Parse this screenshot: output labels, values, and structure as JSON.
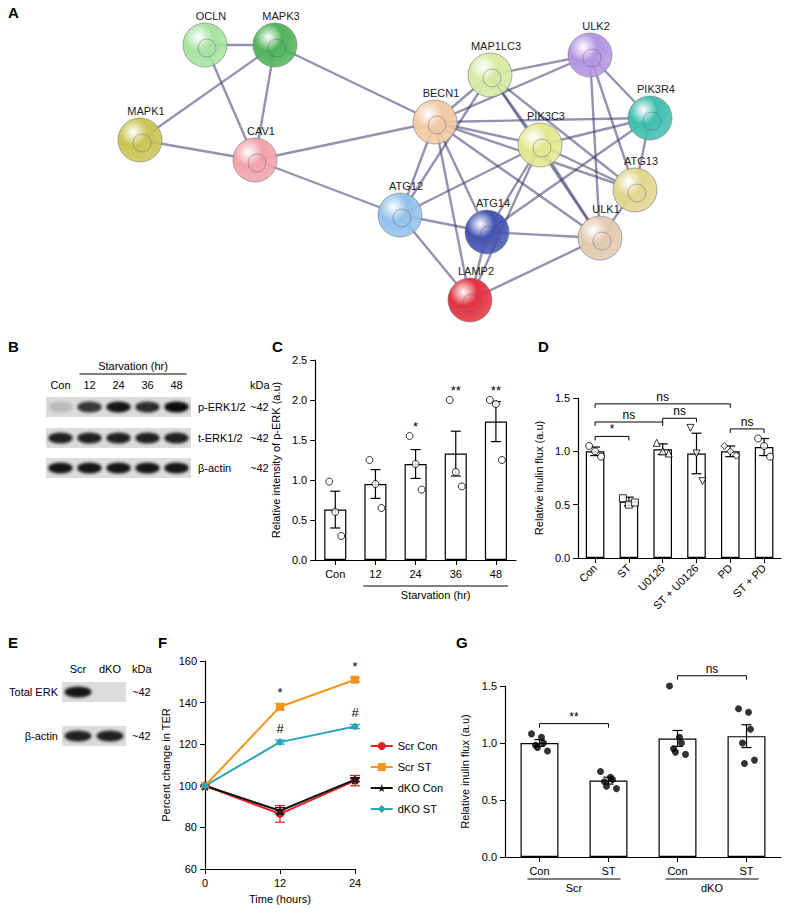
{
  "network": {
    "panel": "A",
    "nodes": [
      {
        "label": "OCLN",
        "color": "#a6e3a1"
      },
      {
        "label": "MAPK3",
        "color": "#4fb45a"
      },
      {
        "label": "MAPK1",
        "color": "#c9c552"
      },
      {
        "label": "CAV1",
        "color": "#f1a3ab"
      },
      {
        "label": "MAP1LC3",
        "color": "#d6eaa2"
      },
      {
        "label": "ULK2",
        "color": "#b395e2"
      },
      {
        "label": "PIK3R4",
        "color": "#3fbfae"
      },
      {
        "label": "BECN1",
        "color": "#f1c9a4"
      },
      {
        "label": "PIK3C3",
        "color": "#e2e88f"
      },
      {
        "label": "ATG13",
        "color": "#e0d58e"
      },
      {
        "label": "ATG12",
        "color": "#93c1ea"
      },
      {
        "label": "ATG14",
        "color": "#4453b3"
      },
      {
        "label": "ULK1",
        "color": "#e2c9b0"
      },
      {
        "label": "LAMP2",
        "color": "#e2323f"
      }
    ],
    "edges": [
      [
        "OCLN",
        "MAPK3"
      ],
      [
        "OCLN",
        "CAV1"
      ],
      [
        "MAPK3",
        "MAPK1"
      ],
      [
        "MAPK3",
        "CAV1"
      ],
      [
        "MAPK3",
        "BECN1"
      ],
      [
        "MAPK1",
        "CAV1"
      ],
      [
        "CAV1",
        "BECN1"
      ],
      [
        "CAV1",
        "ATG12"
      ],
      [
        "BECN1",
        "MAP1LC3"
      ],
      [
        "BECN1",
        "ULK2"
      ],
      [
        "BECN1",
        "PIK3R4"
      ],
      [
        "BECN1",
        "PIK3C3"
      ],
      [
        "BECN1",
        "ATG13"
      ],
      [
        "BECN1",
        "ATG12"
      ],
      [
        "BECN1",
        "ATG14"
      ],
      [
        "BECN1",
        "ULK1"
      ],
      [
        "BECN1",
        "LAMP2"
      ],
      [
        "MAP1LC3",
        "ULK2"
      ],
      [
        "MAP1LC3",
        "PIK3C3"
      ],
      [
        "MAP1LC3",
        "ATG12"
      ],
      [
        "MAP1LC3",
        "ULK1"
      ],
      [
        "MAP1LC3",
        "ATG13"
      ],
      [
        "ULK2",
        "PIK3R4"
      ],
      [
        "ULK2",
        "ATG13"
      ],
      [
        "ULK2",
        "ULK1"
      ],
      [
        "PIK3R4",
        "PIK3C3"
      ],
      [
        "PIK3R4",
        "ATG14"
      ],
      [
        "PIK3R4",
        "ATG13"
      ],
      [
        "PIK3C3",
        "ATG14"
      ],
      [
        "PIK3C3",
        "ATG12"
      ],
      [
        "PIK3C3",
        "ATG13"
      ],
      [
        "PIK3C3",
        "ULK1"
      ],
      [
        "PIK3C3",
        "LAMP2"
      ],
      [
        "ATG12",
        "ATG14"
      ],
      [
        "ATG12",
        "LAMP2"
      ],
      [
        "ATG14",
        "ULK1"
      ],
      [
        "ATG14",
        "LAMP2"
      ],
      [
        "ULK1",
        "ATG13"
      ],
      [
        "ULK1",
        "LAMP2"
      ]
    ]
  },
  "blots": [
    {
      "panel": "B",
      "lanes": [
        "Con",
        "12",
        "24",
        "36",
        "48"
      ],
      "lane_group": {
        "label": "Starvation (hr)",
        "from": 1,
        "to": 4
      },
      "unit": "kDa",
      "rows": [
        {
          "label": "p-ERK1/2",
          "size": "~42",
          "band_intensity": [
            0.15,
            0.75,
            0.9,
            0.8,
            0.95
          ]
        },
        {
          "label": "t-ERK1/2",
          "size": "~42",
          "band_intensity": [
            0.85,
            0.85,
            0.85,
            0.85,
            0.85
          ]
        },
        {
          "label": "β-actin",
          "size": "~42",
          "band_intensity": [
            0.9,
            0.9,
            0.9,
            0.9,
            0.9
          ]
        }
      ]
    },
    {
      "panel": "E",
      "lanes": [
        "Scr",
        "dKO"
      ],
      "unit": "kDa",
      "rows": [
        {
          "label": "Total ERK",
          "size": "~42",
          "band_intensity": [
            0.9,
            0
          ]
        },
        {
          "label": "β-actin",
          "size": "~42",
          "band_intensity": [
            0.85,
            0.85
          ]
        }
      ]
    }
  ],
  "chart_data": [
    {
      "panel": "C",
      "type": "bar",
      "categories": [
        "Con",
        "12",
        "24",
        "36",
        "48"
      ],
      "values": [
        0.63,
        0.95,
        1.2,
        1.33,
        1.73
      ],
      "errors": [
        0.23,
        0.18,
        0.18,
        0.28,
        0.25
      ],
      "points": [
        [
          0.98,
          0.6,
          0.3
        ],
        [
          1.25,
          0.95,
          0.65
        ],
        [
          1.55,
          1.2,
          0.88
        ],
        [
          2.0,
          1.1,
          0.92
        ],
        [
          2.0,
          1.95,
          1.25
        ]
      ],
      "marker": "open circle",
      "color": "#ffffff",
      "ylabel": "Relative intensity of p-ERK (a.u)",
      "ylim": [
        0,
        2.5
      ],
      "yticks": [
        {
          "value": 0,
          "label": "0.0"
        },
        {
          "value": 0.5,
          "label": "0.5"
        },
        {
          "value": 1,
          "label": "1.0"
        },
        {
          "value": 1.5,
          "label": "1.5"
        },
        {
          "value": 2,
          "label": "2.0"
        },
        {
          "value": 2.5,
          "label": "2.5"
        }
      ],
      "groups": [
        {
          "label": "Starvation (hr)",
          "from": 1,
          "to": 4
        }
      ],
      "annotations": [
        {
          "category": "24",
          "label": "*"
        },
        {
          "category": "36",
          "label": "**"
        },
        {
          "category": "48",
          "label": "**"
        }
      ],
      "grid": false
    },
    {
      "panel": "D",
      "type": "bar",
      "categories": [
        "Con",
        "ST",
        "U0126",
        "ST + U0126",
        "PD",
        "ST + PD"
      ],
      "values": [
        1.0,
        0.53,
        1.02,
        0.98,
        1.0,
        1.04
      ],
      "errors": [
        0.04,
        0.04,
        0.05,
        0.19,
        0.05,
        0.08
      ],
      "points": [
        {
          "values": [
            1.05,
            1.0,
            0.95
          ],
          "marker": "open circle"
        },
        {
          "values": [
            0.56,
            0.5,
            0.52
          ],
          "marker": "open square"
        },
        {
          "values": [
            1.08,
            1.0,
            0.98
          ],
          "marker": "open triangle"
        },
        {
          "values": [
            1.22,
            0.98,
            0.72
          ],
          "marker": "open triangle-down"
        },
        {
          "values": [
            1.05,
            1.0,
            0.96
          ],
          "marker": "open diamond"
        },
        {
          "values": [
            1.12,
            1.05,
            0.95
          ],
          "marker": "open circle"
        }
      ],
      "color": "#ffffff",
      "ylabel": "Relative inulin flux (a.u)",
      "ylim": [
        0,
        1.5
      ],
      "yticks": [
        {
          "value": 0,
          "label": "0.0"
        },
        {
          "value": 0.5,
          "label": "0.5"
        },
        {
          "value": 1,
          "label": "1.0"
        },
        {
          "value": 1.5,
          "label": "1.5"
        }
      ],
      "comparisons": [
        {
          "from": 0,
          "to": 1,
          "label": "*"
        },
        {
          "from": 0,
          "to": 2,
          "label": "ns"
        },
        {
          "from": 0,
          "to": 4,
          "label": "ns"
        },
        {
          "from": 2,
          "to": 3,
          "label": "ns"
        },
        {
          "from": 4,
          "to": 5,
          "label": "ns"
        }
      ],
      "grid": false
    },
    {
      "panel": "F",
      "type": "line",
      "x": [
        0,
        12,
        24
      ],
      "series": [
        {
          "name": "Scr Con",
          "color": "#e31e24",
          "marker": "circle",
          "values": [
            100,
            86.5,
            102.5
          ],
          "errors": [
            0,
            4,
            2.5
          ]
        },
        {
          "name": "Scr ST",
          "color": "#f7941d",
          "marker": "square",
          "values": [
            100,
            138,
            151
          ],
          "errors": [
            0,
            1.5,
            1
          ],
          "annotations": [
            {
              "x": 12,
              "label": "*"
            },
            {
              "x": 24,
              "label": "*"
            }
          ]
        },
        {
          "name": "dKO Con",
          "color": "#111111",
          "marker": "star",
          "values": [
            100,
            88,
            103
          ],
          "errors": [
            0,
            1.5,
            1
          ]
        },
        {
          "name": "dKO ST",
          "color": "#2ba6b4",
          "marker": "diamond",
          "values": [
            100,
            121,
            128.5
          ],
          "errors": [
            0,
            1,
            1
          ],
          "annotations": [
            {
              "x": 12,
              "label": "#"
            },
            {
              "x": 24,
              "label": "#"
            }
          ]
        }
      ],
      "xlabel": "Time (hours)",
      "ylabel": "Percent change in TER",
      "xlim": [
        0,
        24
      ],
      "xticks": [
        0,
        12,
        24
      ],
      "ylim": [
        60,
        160
      ],
      "yticks": [
        60,
        80,
        100,
        120,
        140,
        160
      ],
      "legend": "right",
      "grid": false
    },
    {
      "panel": "G",
      "type": "bar",
      "categories": [
        "Con",
        "ST",
        "Con",
        "ST"
      ],
      "values": [
        1.0,
        0.67,
        1.04,
        1.06
      ],
      "errors": [
        0.03,
        0.03,
        0.07,
        0.1
      ],
      "points": [
        [
          1.08,
          1.05,
          1.0,
          0.98,
          0.96,
          0.93
        ],
        [
          0.75,
          0.7,
          0.68,
          0.66,
          0.62,
          0.6
        ],
        [
          1.5,
          1.05,
          1.0,
          0.95,
          0.92,
          0.9
        ],
        [
          1.3,
          1.27,
          1.12,
          1.0,
          0.82,
          0.85
        ]
      ],
      "marker": "circle",
      "color": "#ffffff",
      "ylabel": "Relative inulin flux (a.u)",
      "ylim": [
        0,
        1.5
      ],
      "yticks": [
        {
          "value": 0,
          "label": "0.0"
        },
        {
          "value": 0.5,
          "label": "0.5"
        },
        {
          "value": 1,
          "label": "1.0"
        },
        {
          "value": 1.5,
          "label": "1.5"
        }
      ],
      "groups": [
        {
          "label": "Scr",
          "from": 0,
          "to": 1
        },
        {
          "label": "dKO",
          "from": 2,
          "to": 3
        }
      ],
      "comparisons": [
        {
          "from": 0,
          "to": 1,
          "label": "**"
        },
        {
          "from": 2,
          "to": 3,
          "label": "ns"
        }
      ],
      "grid": false
    }
  ]
}
